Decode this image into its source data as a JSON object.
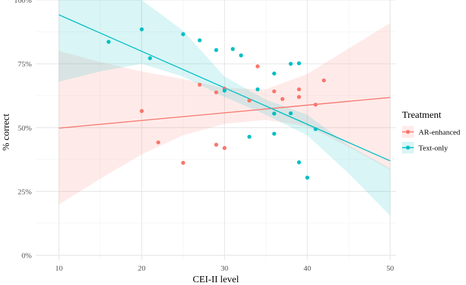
{
  "chart_data": {
    "type": "scatter",
    "title": "",
    "xlabel": "CEI-II level",
    "ylabel": "% correct",
    "xlim": [
      7.2,
      50.7
    ],
    "ylim": [
      -0.02,
      1.0
    ],
    "x_ticks": [
      10,
      20,
      30,
      40,
      50
    ],
    "y_ticks": [
      0,
      0.25,
      0.5,
      0.75,
      1.0
    ],
    "y_tick_labels": [
      "0%",
      "25%",
      "50%",
      "75%",
      "100%"
    ],
    "grid": true,
    "legend": {
      "title": "Treatment",
      "position": "right"
    },
    "series": [
      {
        "name": "AR-enhanced",
        "color": "#F8766D",
        "ribbon_color": "#F8766D",
        "points": [
          {
            "x": 20,
            "y": 0.565
          },
          {
            "x": 22,
            "y": 0.442
          },
          {
            "x": 25,
            "y": 0.362
          },
          {
            "x": 27,
            "y": 0.668
          },
          {
            "x": 29,
            "y": 0.638
          },
          {
            "x": 29,
            "y": 0.433
          },
          {
            "x": 30,
            "y": 0.653
          },
          {
            "x": 30,
            "y": 0.42
          },
          {
            "x": 33,
            "y": 0.606
          },
          {
            "x": 34,
            "y": 0.74
          },
          {
            "x": 36,
            "y": 0.642
          },
          {
            "x": 37,
            "y": 0.612
          },
          {
            "x": 39,
            "y": 0.65
          },
          {
            "x": 39,
            "y": 0.62
          },
          {
            "x": 41,
            "y": 0.59
          },
          {
            "x": 42,
            "y": 0.685
          }
        ],
        "fit": {
          "x": [
            10,
            50
          ],
          "y": [
            0.498,
            0.618
          ]
        },
        "ribbon": {
          "x": [
            10,
            15,
            20,
            25,
            30,
            35,
            40,
            45,
            50
          ],
          "lower": [
            0.198,
            0.3,
            0.395,
            0.47,
            0.515,
            0.53,
            0.505,
            0.425,
            0.335
          ],
          "upper": [
            0.8,
            0.757,
            0.72,
            0.69,
            0.655,
            0.65,
            0.71,
            0.81,
            0.91
          ]
        }
      },
      {
        "name": "Text-only",
        "color": "#00BFC4",
        "ribbon_color": "#00BFC4",
        "points": [
          {
            "x": 16,
            "y": 0.836
          },
          {
            "x": 20,
            "y": 0.885
          },
          {
            "x": 21,
            "y": 0.772
          },
          {
            "x": 25,
            "y": 0.866
          },
          {
            "x": 27,
            "y": 0.842
          },
          {
            "x": 29,
            "y": 0.804
          },
          {
            "x": 30,
            "y": 0.645
          },
          {
            "x": 31,
            "y": 0.808
          },
          {
            "x": 32,
            "y": 0.783
          },
          {
            "x": 33,
            "y": 0.464
          },
          {
            "x": 34,
            "y": 0.65
          },
          {
            "x": 36,
            "y": 0.712
          },
          {
            "x": 36,
            "y": 0.555
          },
          {
            "x": 36,
            "y": 0.476
          },
          {
            "x": 38,
            "y": 0.75
          },
          {
            "x": 38,
            "y": 0.556
          },
          {
            "x": 39,
            "y": 0.752
          },
          {
            "x": 39,
            "y": 0.364
          },
          {
            "x": 40,
            "y": 0.304
          },
          {
            "x": 41,
            "y": 0.494
          }
        ],
        "fit": {
          "x": [
            10,
            50
          ],
          "y": [
            0.942,
            0.37
          ]
        },
        "ribbon": {
          "x": [
            10,
            15,
            20,
            25,
            30,
            35,
            40,
            45,
            50
          ],
          "lower": [
            0.68,
            0.72,
            0.75,
            0.7,
            0.62,
            0.55,
            0.47,
            0.32,
            0.155
          ],
          "upper": [
            1.0,
            1.0,
            1.0,
            0.88,
            0.7,
            0.61,
            0.55,
            0.43,
            0.34
          ]
        }
      }
    ]
  }
}
